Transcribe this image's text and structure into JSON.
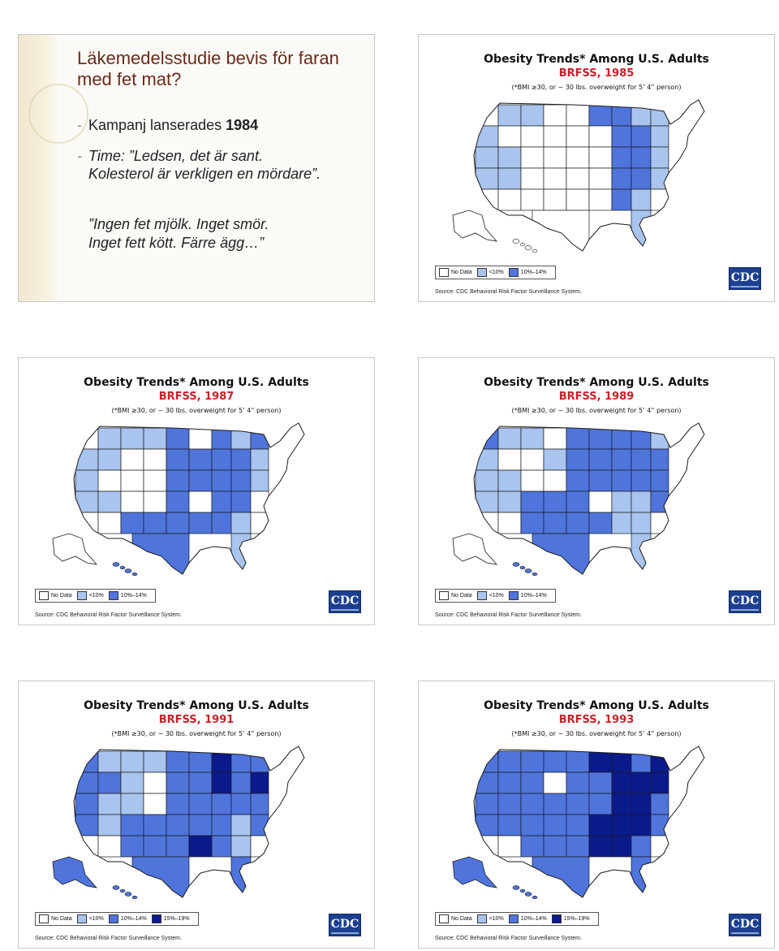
{
  "text_slide": {
    "title": "Läkemedelsstudie bevis för faran med fet mat?",
    "bullet1_prefix": "Kampanj lanserades ",
    "bullet1_bold": "1984",
    "bullet2_line1": "Time: ”Ledsen, det är sant.",
    "bullet2_line2": "Kolesterol är verkligen en mördare”.",
    "quote_line1": "”Ingen fet mjölk. Inget smör.",
    "quote_line2": "Inget fett kött. Färre ägg…”"
  },
  "map_common": {
    "title": "Obesity Trends* Among U.S. Adults",
    "note": "(*BMI ≥30, or ~ 30 lbs. overweight for 5’ 4” person)",
    "source": "Source: CDC Behavioral Risk Factor Surveillance System.",
    "logo": "CDC",
    "legend_labels": [
      "No Data",
      "<10%",
      "10%–14%",
      "15%–19%"
    ]
  },
  "colors": {
    "no_data": "#ffffff",
    "lt10": "#a9c4ee",
    "10to14": "#4f74dc",
    "15to19": "#0a1a8c",
    "map_stroke": "#1a1a1a"
  },
  "maps": [
    {
      "year_label": "BRFSS, 1985",
      "levels": 3
    },
    {
      "year_label": "BRFSS, 1987",
      "levels": 3
    },
    {
      "year_label": "BRFSS, 1989",
      "levels": 3
    },
    {
      "year_label": "BRFSS, 1991",
      "levels": 4
    },
    {
      "year_label": "BRFSS, 1993",
      "levels": 4
    }
  ]
}
